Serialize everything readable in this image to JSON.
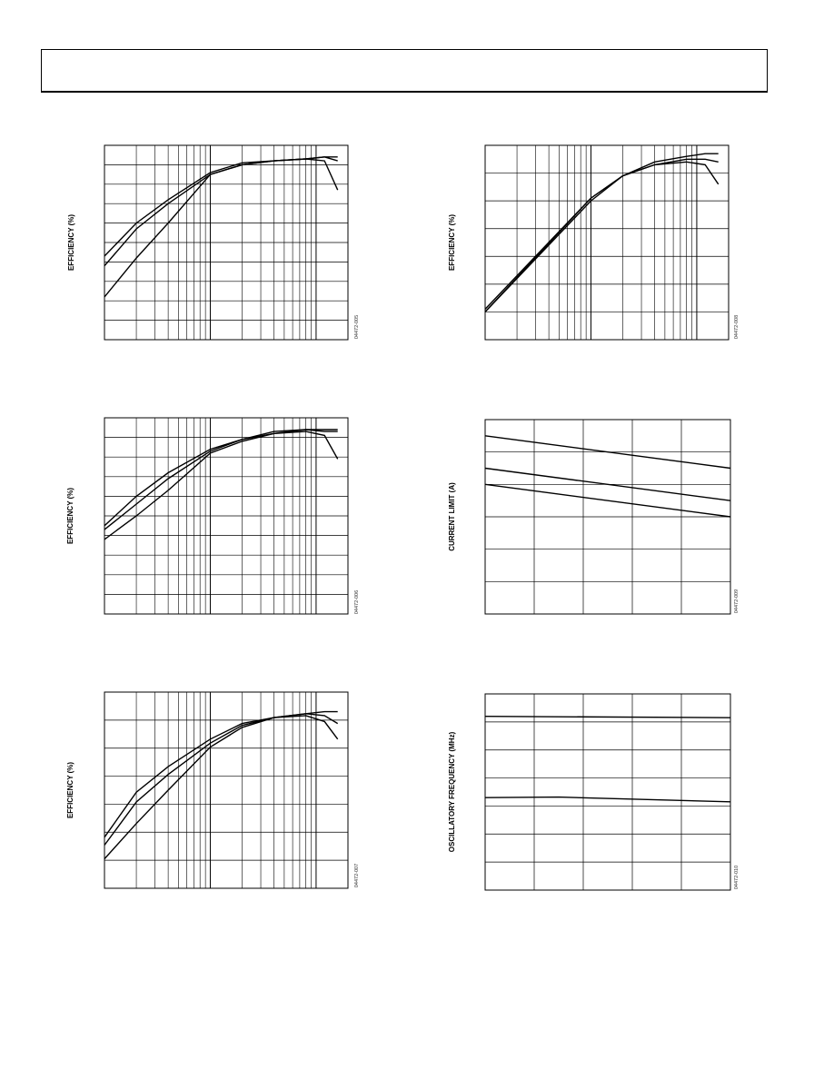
{
  "page": {
    "header_title": ""
  },
  "chart_data": [
    {
      "id": "p1",
      "type": "line",
      "x_scale": "log",
      "ylabel": "EFFICIENCY (%)",
      "figure_id": "04472-005",
      "grid": true,
      "series": [
        {
          "x": [
            0.0001,
            0.0002,
            0.0004,
            0.001,
            0.002,
            0.004,
            0.008,
            0.012,
            0.016
          ],
          "y": [
            22,
            42,
            60,
            85,
            90,
            92,
            93,
            92,
            77
          ]
        },
        {
          "x": [
            0.0001,
            0.0002,
            0.0004,
            0.001,
            0.002,
            0.004,
            0.008,
            0.012,
            0.016
          ],
          "y": [
            38,
            57,
            70,
            85,
            90,
            92,
            93,
            94,
            94
          ]
        },
        {
          "x": [
            0.0001,
            0.0002,
            0.0004,
            0.001,
            0.002,
            0.004,
            0.008,
            0.012,
            0.016
          ],
          "y": [
            43,
            60,
            72,
            86,
            91,
            92,
            93,
            94,
            92
          ]
        }
      ]
    },
    {
      "id": "p2",
      "type": "line",
      "x_scale": "log",
      "ylabel": "EFFICIENCY (%)",
      "figure_id": "04472-008",
      "grid": true,
      "series": [
        {
          "x": [
            0.0001,
            0.001,
            0.002,
            0.004,
            0.008,
            0.012,
            0.016
          ],
          "y": [
            10,
            50,
            59,
            63,
            64,
            63,
            56
          ]
        },
        {
          "x": [
            0.0001,
            0.001,
            0.002,
            0.004,
            0.008,
            0.012,
            0.016
          ],
          "y": [
            10,
            51,
            59,
            63,
            65,
            65,
            64
          ]
        },
        {
          "x": [
            0.0001,
            0.001,
            0.002,
            0.004,
            0.008,
            0.012,
            0.016
          ],
          "y": [
            11,
            51,
            59,
            64,
            66,
            67,
            67
          ]
        }
      ]
    },
    {
      "id": "p3",
      "type": "line",
      "x_scale": "log",
      "ylabel": "EFFICIENCY (%)",
      "figure_id": "04472-006",
      "grid": true,
      "series": [
        {
          "x": [
            0.0001,
            0.0002,
            0.0004,
            0.001,
            0.002,
            0.004,
            0.008,
            0.012,
            0.016
          ],
          "y": [
            38,
            50,
            63,
            82,
            88,
            92,
            93,
            91,
            79
          ]
        },
        {
          "x": [
            0.0001,
            0.0002,
            0.0004,
            0.001,
            0.002,
            0.004,
            0.008,
            0.012,
            0.016
          ],
          "y": [
            43,
            56,
            69,
            83,
            89,
            92,
            94,
            93,
            93
          ]
        },
        {
          "x": [
            0.0001,
            0.0002,
            0.0004,
            0.001,
            0.002,
            0.004,
            0.008,
            0.012,
            0.016
          ],
          "y": [
            45,
            60,
            72,
            84,
            89,
            93,
            94,
            94,
            94
          ]
        }
      ]
    },
    {
      "id": "p4",
      "type": "line",
      "ylabel": "CURRENT LIMIT (A)",
      "figure_id": "04472-009",
      "grid": true,
      "series": [
        {
          "x": [
            0,
            1
          ],
          "y": [
            5.5,
            4.5
          ]
        },
        {
          "x": [
            0,
            1
          ],
          "y": [
            4.5,
            3.5
          ]
        },
        {
          "x": [
            0,
            1
          ],
          "y": [
            4.0,
            3.0
          ]
        }
      ]
    },
    {
      "id": "p5",
      "type": "line",
      "x_scale": "log",
      "ylabel": "EFFICIENCY (%)",
      "figure_id": "04472-007",
      "grid": true,
      "series": [
        {
          "x": [
            0.0001,
            0.0002,
            0.0004,
            0.001,
            0.002,
            0.004,
            0.008,
            0.012,
            0.016
          ],
          "y": [
            15,
            33,
            50,
            72,
            82,
            87,
            88,
            85,
            76
          ]
        },
        {
          "x": [
            0.0001,
            0.0002,
            0.0004,
            0.001,
            0.002,
            0.004,
            0.008,
            0.012,
            0.016
          ],
          "y": [
            22,
            44,
            58,
            74,
            83,
            87,
            89,
            88,
            84
          ]
        },
        {
          "x": [
            0.0001,
            0.0002,
            0.0004,
            0.001,
            0.002,
            0.004,
            0.008,
            0.012,
            0.016
          ],
          "y": [
            26,
            49,
            62,
            76,
            84,
            87,
            89,
            90,
            90
          ]
        }
      ]
    },
    {
      "id": "p6",
      "type": "line",
      "ylabel": "OSCILLATORY FREQUENCY (MHz)",
      "figure_id": "04472-010",
      "grid": true,
      "series": [
        {
          "x": [
            0,
            1
          ],
          "y": [
            6.2,
            6.15
          ]
        },
        {
          "x": [
            0,
            0.3,
            1
          ],
          "y": [
            3.3,
            3.32,
            3.15
          ]
        }
      ]
    }
  ]
}
